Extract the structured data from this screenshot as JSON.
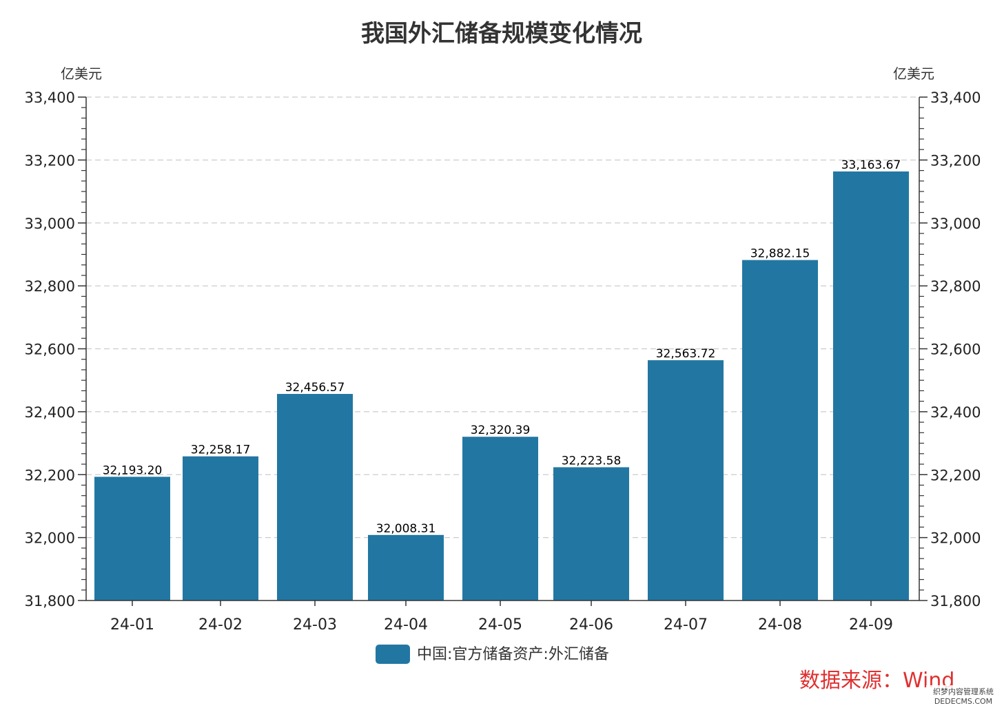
{
  "chart_data": {
    "type": "bar",
    "title": "我国外汇储备规模变化情况",
    "y_unit_left": "亿美元",
    "y_unit_right": "亿美元",
    "categories": [
      "24-01",
      "24-02",
      "24-03",
      "24-04",
      "24-05",
      "24-06",
      "24-07",
      "24-08",
      "24-09"
    ],
    "series": [
      {
        "name": "中国:官方储备资产:外汇储备",
        "values": [
          32193.2,
          32258.17,
          32456.57,
          32008.31,
          32320.39,
          32223.58,
          32563.72,
          32882.15,
          33163.67
        ],
        "labels": [
          "32,193.20",
          "32,258.17",
          "32,456.57",
          "32,008.31",
          "32,320.39",
          "32,223.58",
          "32,563.72",
          "32,882.15",
          "33,163.67"
        ],
        "color": "#2277a2"
      }
    ],
    "ylim": [
      31800,
      33400
    ],
    "y_ticks": [
      31800,
      32000,
      32200,
      32400,
      32600,
      32800,
      33000,
      33200,
      33400
    ],
    "y_tick_labels": [
      "31,800",
      "32,000",
      "32,200",
      "32,400",
      "32,600",
      "32,800",
      "33,000",
      "33,200",
      "33,400"
    ],
    "grid": true,
    "legend_position": "bottom-center"
  },
  "source_note": "数据来源：Wind",
  "watermark": {
    "line1": "织梦内容管理系统",
    "line2": "DEDECMS.COM"
  }
}
